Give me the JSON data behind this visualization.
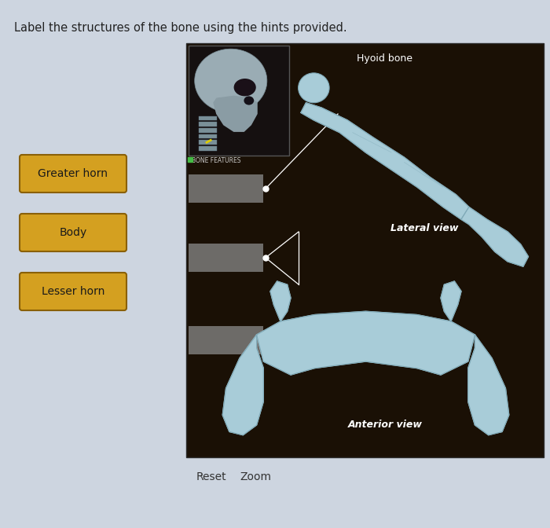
{
  "title": "Label the structures of the bone using the hints provided.",
  "title_fontsize": 10.5,
  "bg_color": "#cdd5e0",
  "panel_bg": "#1a1005",
  "button_labels": [
    "Greater horn",
    "Body",
    "Lesser horn"
  ],
  "button_color": "#d4a020",
  "button_text_color": "#1a1a1a",
  "button_border_color": "#8a6008",
  "hyoid_label": "Hyoid bone",
  "lateral_view_label": "Lateral view",
  "anterior_view_label": "Anterior view",
  "bone_features_label": "BONE FEATURES",
  "reset_label": "Reset",
  "zoom_label": "Zoom",
  "bone_color": "#a8ccd8",
  "bone_edge_color": "#80aab8",
  "line_color": "white",
  "dot_color": "white"
}
